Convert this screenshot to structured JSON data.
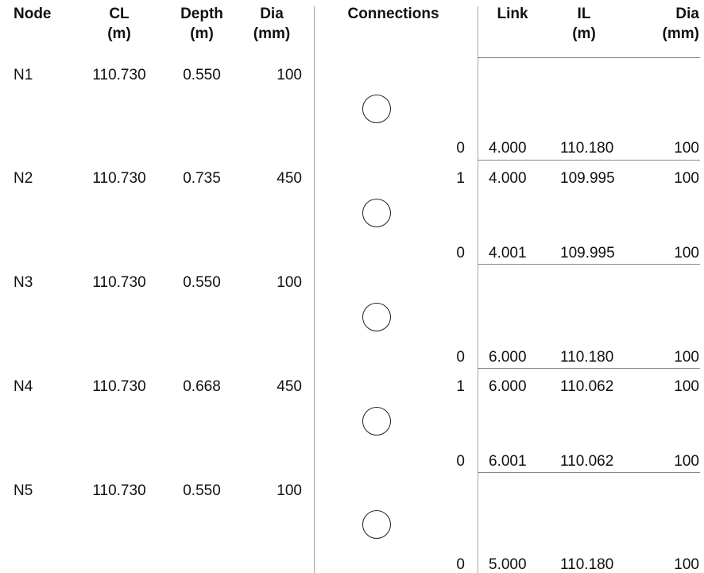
{
  "headers": {
    "node": "Node",
    "cl": "CL",
    "cl_unit": "(m)",
    "depth": "Depth",
    "depth_unit": "(m)",
    "dia": "Dia",
    "dia_unit": "(mm)",
    "connections": "Connections",
    "link": "Link",
    "il": "IL",
    "il_unit": "(m)",
    "out_dia": "Dia",
    "out_dia_unit": "(mm)"
  },
  "rows": [
    {
      "node": "N1",
      "cl": "110.730",
      "depth": "0.550",
      "dia": "100",
      "links": [
        {
          "connection": "0",
          "link": "4.000",
          "il": "110.180",
          "dia": "100"
        }
      ]
    },
    {
      "node": "N2",
      "cl": "110.730",
      "depth": "0.735",
      "dia": "450",
      "links": [
        {
          "connection": "1",
          "link": "4.000",
          "il": "109.995",
          "dia": "100"
        },
        {
          "connection": "0",
          "link": "4.001",
          "il": "109.995",
          "dia": "100"
        }
      ]
    },
    {
      "node": "N3",
      "cl": "110.730",
      "depth": "0.550",
      "dia": "100",
      "links": [
        {
          "connection": "0",
          "link": "6.000",
          "il": "110.180",
          "dia": "100"
        }
      ]
    },
    {
      "node": "N4",
      "cl": "110.730",
      "depth": "0.668",
      "dia": "450",
      "links": [
        {
          "connection": "1",
          "link": "6.000",
          "il": "110.062",
          "dia": "100"
        },
        {
          "connection": "0",
          "link": "6.001",
          "il": "110.062",
          "dia": "100"
        }
      ]
    },
    {
      "node": "N5",
      "cl": "110.730",
      "depth": "0.550",
      "dia": "100",
      "links": [
        {
          "connection": "0",
          "link": "5.000",
          "il": "110.180",
          "dia": "100"
        }
      ]
    }
  ]
}
